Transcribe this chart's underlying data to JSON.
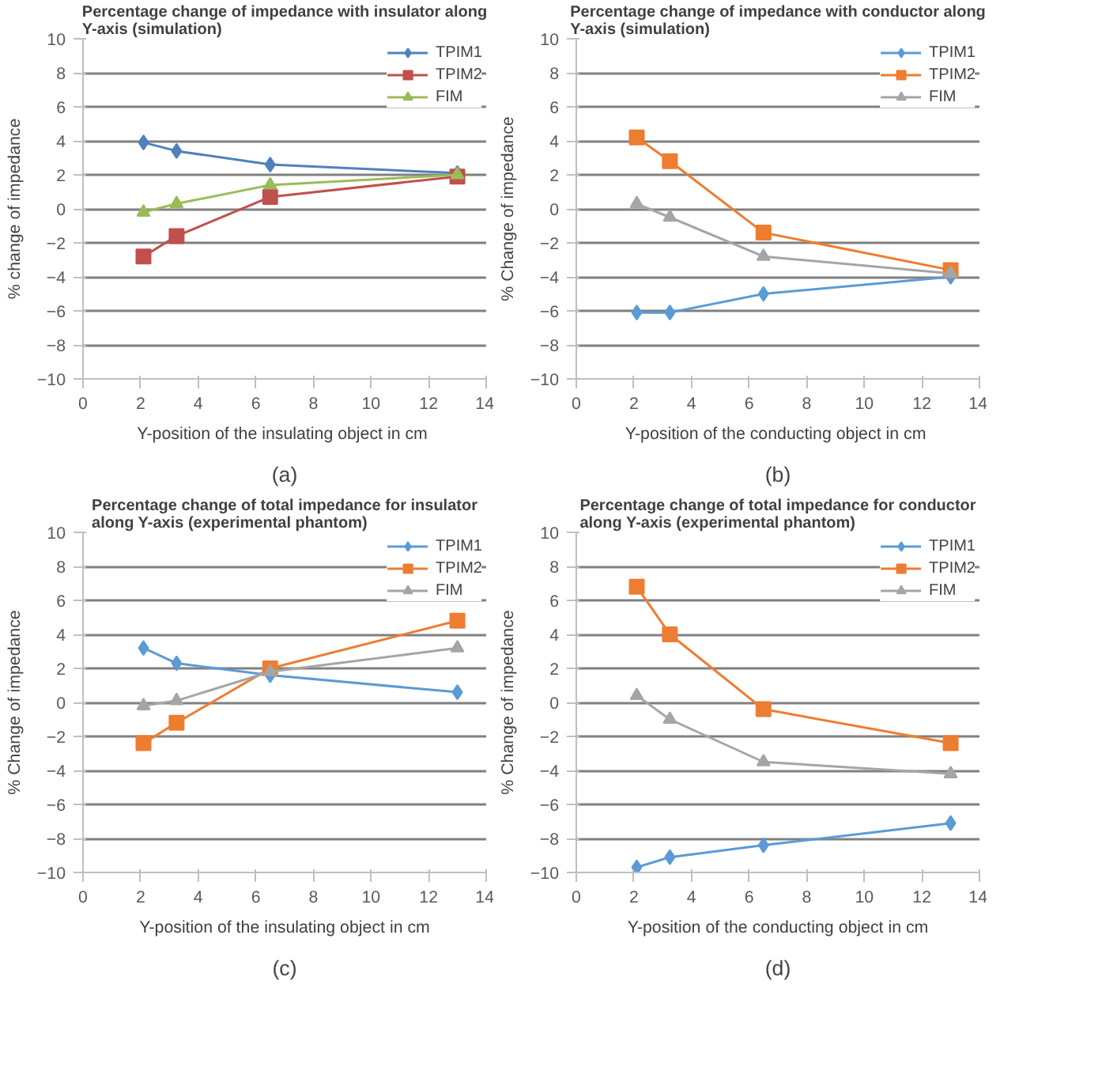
{
  "chart_data": [
    {
      "type": "line",
      "title": "Percentage change of impedance with insulator along Y-axis (simulation)",
      "xlabel": "Y-position of the  insulating object in cm",
      "ylabel": "% change of impedance",
      "annotations": [
        "(a)"
      ],
      "x": [
        2.1,
        3.25,
        6.5,
        13
      ],
      "xlim": [
        0,
        14
      ],
      "xticks": [
        0,
        2,
        4,
        6,
        8,
        10,
        12,
        14
      ],
      "ylim": [
        -10,
        10
      ],
      "yticks": [
        -10,
        -8,
        -6,
        -4,
        -2,
        0,
        2,
        4,
        6,
        8,
        10
      ],
      "grid": "y",
      "legend": "top right",
      "line_style": "solid",
      "series": [
        {
          "name": "TPIM1",
          "color": "#4f81bd",
          "marker": "diamond",
          "values": [
            3.9,
            3.4,
            2.6,
            2.1
          ]
        },
        {
          "name": "TPIM2",
          "color": "#c0504d",
          "marker": "square",
          "values": [
            -2.8,
            -1.6,
            0.7,
            1.9
          ]
        },
        {
          "name": "FIM",
          "color": "#9bbb59",
          "marker": "triangle",
          "values": [
            -0.2,
            0.3,
            1.4,
            2.0
          ]
        }
      ]
    },
    {
      "type": "line",
      "title": "Percentage change of impedance with conductor along Y-axis (simulation)",
      "xlabel": "Y-position of the  conducting object in cm",
      "ylabel": "% Change of impedance",
      "annotations": [
        "(b)"
      ],
      "x": [
        2.1,
        3.25,
        6.5,
        13
      ],
      "xlim": [
        0,
        14
      ],
      "xticks": [
        0,
        2,
        4,
        6,
        8,
        10,
        12,
        14
      ],
      "ylim": [
        -10,
        10
      ],
      "yticks": [
        -10,
        -8,
        -6,
        -4,
        -2,
        0,
        2,
        4,
        6,
        8,
        10
      ],
      "grid": "y",
      "legend": "top right",
      "line_style": "solid",
      "series": [
        {
          "name": "TPIM1",
          "color": "#5b9bd5",
          "marker": "diamond",
          "values": [
            -6.1,
            -6.1,
            -5.0,
            -4.0
          ]
        },
        {
          "name": "TPIM2",
          "color": "#ed7d31",
          "marker": "square",
          "values": [
            4.2,
            2.8,
            -1.4,
            -3.6
          ]
        },
        {
          "name": "FIM",
          "color": "#a5a5a5",
          "marker": "triangle",
          "values": [
            0.3,
            -0.5,
            -2.8,
            -3.8
          ]
        }
      ]
    },
    {
      "type": "line",
      "title": "Percentage change of total impedance for insulator along Y-axis (experimental phantom)",
      "xlabel": "Y-position of the insulating object in cm",
      "ylabel": "% Change of impedance",
      "annotations": [
        "(c)"
      ],
      "x": [
        2.1,
        3.25,
        6.5,
        13
      ],
      "xlim": [
        0,
        14
      ],
      "xticks": [
        0,
        2,
        4,
        6,
        8,
        10,
        12,
        14
      ],
      "ylim": [
        -10,
        10
      ],
      "yticks": [
        -10,
        -8,
        -6,
        -4,
        -2,
        0,
        2,
        4,
        6,
        8,
        10
      ],
      "grid": "y",
      "legend": "top right",
      "line_style": "solid",
      "series": [
        {
          "name": "TPIM1",
          "color": "#5b9bd5",
          "marker": "diamond",
          "values": [
            3.2,
            2.3,
            1.6,
            0.6
          ]
        },
        {
          "name": "TPIM2",
          "color": "#ed7d31",
          "marker": "square",
          "values": [
            -2.4,
            -1.2,
            2.0,
            4.8
          ]
        },
        {
          "name": "FIM",
          "color": "#a5a5a5",
          "marker": "triangle",
          "values": [
            -0.2,
            0.1,
            1.8,
            3.2
          ]
        }
      ]
    },
    {
      "type": "line",
      "title": "Percentage change of total impedance for conductor along Y-axis (experimental phantom)",
      "xlabel": "Y-position of the conducting object in cm",
      "ylabel": "% Change of impedance",
      "annotations": [
        "(d)"
      ],
      "x": [
        2.1,
        3.25,
        6.5,
        13
      ],
      "xlim": [
        0,
        14
      ],
      "xticks": [
        0,
        2,
        4,
        6,
        8,
        10,
        12,
        14
      ],
      "ylim": [
        -10,
        10
      ],
      "yticks": [
        -10,
        -8,
        -6,
        -4,
        -2,
        0,
        2,
        4,
        6,
        8,
        10
      ],
      "grid": "y",
      "legend": "top right",
      "line_style": "solid",
      "series": [
        {
          "name": "TPIM1",
          "color": "#5b9bd5",
          "marker": "diamond",
          "values": [
            -9.7,
            -9.1,
            -8.4,
            -7.1
          ]
        },
        {
          "name": "TPIM2",
          "color": "#ed7d31",
          "marker": "square",
          "values": [
            6.8,
            4.0,
            -0.4,
            -2.4
          ]
        },
        {
          "name": "FIM",
          "color": "#a5a5a5",
          "marker": "triangle",
          "values": [
            0.4,
            -1.0,
            -3.5,
            -4.2
          ]
        }
      ]
    }
  ]
}
